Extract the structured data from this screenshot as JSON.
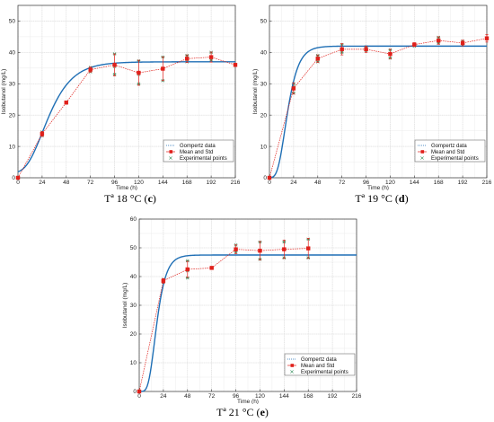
{
  "colors": {
    "gompertz": "#1f6fb5",
    "mean": "#e0201b",
    "experimental": "#2e8b57",
    "grid": "#d9d9d9",
    "axis": "#333333"
  },
  "chart_data": [
    {
      "id": "c",
      "type": "line",
      "caption_prefix": "Tª 18 °C (",
      "caption_letter": "c",
      "caption_suffix": ")",
      "xlabel": "Time (h)",
      "ylabel": "Isobutanol (mg/L)",
      "xlim": [
        0,
        216
      ],
      "ylim": [
        0,
        55
      ],
      "xticks": [
        0,
        24,
        48,
        72,
        96,
        120,
        144,
        168,
        192,
        216
      ],
      "yticks": [
        0,
        10,
        20,
        30,
        40,
        50
      ],
      "grid": true,
      "legend_position": "bottom-right",
      "legend": [
        "Gompertz data",
        "Mean and Std",
        "Experimental points"
      ],
      "series": [
        {
          "name": "Gompertz data",
          "kind": "curve",
          "model": "gompertz",
          "A": 37,
          "mu": 0.8,
          "lambda": 8,
          "y0": 1.5
        },
        {
          "name": "Mean and Std",
          "kind": "errorbar",
          "x": [
            0,
            24,
            48,
            72,
            96,
            120,
            144,
            168,
            192,
            216
          ],
          "y": [
            0,
            14,
            24,
            34.5,
            36,
            33.5,
            34.8,
            38,
            38.5,
            36
          ],
          "err": [
            0.2,
            0.8,
            0.5,
            0.8,
            3.5,
            4,
            3.8,
            1.2,
            1.6,
            0.5
          ]
        },
        {
          "name": "Experimental points",
          "kind": "scatter",
          "x": [
            0,
            24,
            24,
            48,
            72,
            72,
            96,
            96,
            96,
            120,
            120,
            120,
            144,
            144,
            168,
            168,
            192,
            192,
            216
          ],
          "y": [
            0,
            13.4,
            14.6,
            24,
            33.8,
            35.2,
            39.5,
            33,
            35.5,
            37.3,
            30,
            33,
            38.5,
            31,
            37,
            39,
            40,
            37.5,
            36
          ]
        }
      ]
    },
    {
      "id": "d",
      "type": "line",
      "caption_prefix": "Tª 19 °C (",
      "caption_letter": "d",
      "caption_suffix": ")",
      "xlabel": "Time (h)",
      "ylabel": "Isobutanol (mg/L)",
      "xlim": [
        0,
        216
      ],
      "ylim": [
        0,
        55
      ],
      "xticks": [
        0,
        24,
        48,
        72,
        96,
        120,
        144,
        168,
        192,
        216
      ],
      "yticks": [
        0,
        10,
        20,
        30,
        40,
        50
      ],
      "grid": true,
      "legend_position": "bottom-right",
      "legend": [
        "Gompertz data",
        "Mean and Std",
        "Experimental points"
      ],
      "series": [
        {
          "name": "Gompertz data",
          "kind": "curve",
          "model": "gompertz",
          "A": 42,
          "mu": 2.1,
          "lambda": 8,
          "y0": 0
        },
        {
          "name": "Mean and Std",
          "kind": "errorbar",
          "x": [
            0,
            24,
            48,
            72,
            96,
            120,
            144,
            168,
            192,
            216
          ],
          "y": [
            0,
            28.5,
            38,
            41,
            41,
            39.5,
            42.5,
            43.8,
            43,
            44.5
          ],
          "err": [
            0.2,
            1.8,
            1.2,
            1.8,
            1,
            1.5,
            0.6,
            1.2,
            0.9,
            1.2
          ]
        },
        {
          "name": "Experimental points",
          "kind": "scatter",
          "x": [
            0,
            24,
            24,
            24,
            48,
            48,
            72,
            72,
            96,
            96,
            120,
            120,
            144,
            168,
            168,
            192,
            192,
            216
          ],
          "y": [
            0,
            27,
            29,
            30,
            37,
            39,
            40,
            42.5,
            40.5,
            41.8,
            38.2,
            40.8,
            42,
            43,
            44.8,
            42.5,
            43.6,
            44.5
          ]
        }
      ]
    },
    {
      "id": "e",
      "type": "line",
      "caption_prefix": "Tª 21 °C (",
      "caption_letter": "e",
      "caption_suffix": ")",
      "xlabel": "Time (h)",
      "ylabel": "Isobutanol (mg/L)",
      "xlim": [
        0,
        216
      ],
      "ylim": [
        0,
        60
      ],
      "xticks": [
        0,
        24,
        48,
        72,
        96,
        120,
        144,
        168,
        192,
        216
      ],
      "yticks": [
        0,
        10,
        20,
        30,
        40,
        50,
        60
      ],
      "grid": true,
      "legend_position": "bottom-right",
      "legend": [
        "Gompertz data",
        "Mean and Std",
        "Experimental points"
      ],
      "series": [
        {
          "name": "Gompertz data",
          "kind": "curve",
          "model": "gompertz",
          "A": 47.5,
          "mu": 2.8,
          "lambda": 9,
          "y0": 0
        },
        {
          "name": "Mean and Std",
          "kind": "errorbar",
          "x": [
            0,
            24,
            48,
            72,
            96,
            120,
            144,
            168
          ],
          "y": [
            0,
            38.5,
            42.5,
            43,
            49.5,
            49,
            49.5,
            49.8
          ],
          "err": [
            0.2,
            0.8,
            2.8,
            0.5,
            1.5,
            3.2,
            3.2,
            3.5
          ]
        },
        {
          "name": "Experimental points",
          "kind": "scatter",
          "x": [
            0,
            24,
            24,
            48,
            48,
            48,
            72,
            96,
            96,
            120,
            120,
            120,
            144,
            144,
            168,
            168,
            168
          ],
          "y": [
            0,
            38,
            39,
            39.5,
            42,
            45.5,
            43,
            48.5,
            51,
            46,
            49,
            52,
            46.5,
            52,
            46.5,
            50,
            53
          ]
        }
      ]
    }
  ]
}
